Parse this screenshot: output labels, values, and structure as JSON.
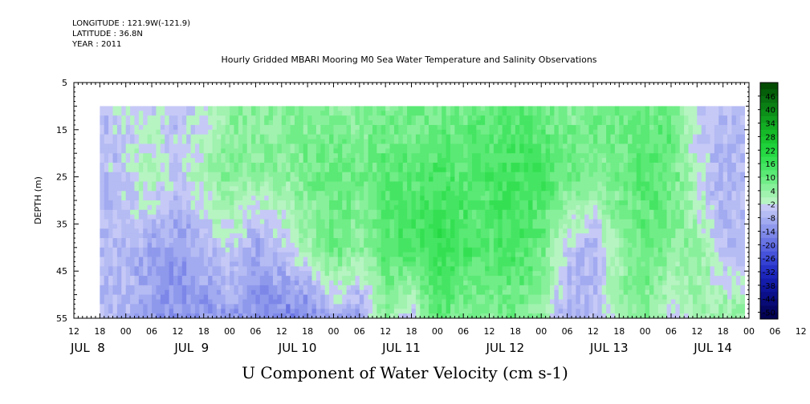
{
  "header": {
    "longitude": "LONGITUDE : 121.9W(-121.9)",
    "latitude": "LATITUDE : 36.8N",
    "year": "YEAR : 2011"
  },
  "chart_data": {
    "type": "heatmap",
    "title": "Hourly Gridded MBARI Mooring M0 Sea Water Temperature and Salinity Observations",
    "xlabel": "U Component of Water Velocity (cm s-1)",
    "ylabel": "DEPTH (m)",
    "y_ticks": [
      5,
      15,
      25,
      35,
      45,
      55
    ],
    "ylim": [
      5,
      55
    ],
    "y_reversed": true,
    "hour_ticks": [
      "12",
      "18",
      "00",
      "06",
      "12",
      "18",
      "00",
      "06",
      "12",
      "18",
      "00",
      "06",
      "12",
      "18",
      "00",
      "06",
      "12",
      "18",
      "00",
      "06",
      "12",
      "18",
      "00",
      "06",
      "12",
      "18",
      "00",
      "06",
      "12",
      "18",
      "00"
    ],
    "day_labels": [
      "JUL  8",
      "JUL  9",
      "JUL 10",
      "JUL 11",
      "JUL 12",
      "JUL 13",
      "JUL 14"
    ],
    "x_range_hours": [
      "JUL 8 12:00",
      "JUL 15 00:00"
    ],
    "data_start": "JUL 8 18:00",
    "data_end": "JUL 14 23:00",
    "data_depth_range": [
      10,
      55
    ],
    "colorbar_labels": [
      "46",
      "40",
      "34",
      "28",
      "22",
      "16",
      "10",
      "4",
      "-2",
      "-8",
      "-14",
      "-20",
      "-26",
      "-32",
      "-38",
      "-44",
      "-50"
    ],
    "color_levels": [
      {
        "upper": 52,
        "color": "#034b03"
      },
      {
        "upper": 49,
        "color": "#055e09"
      },
      {
        "upper": 46,
        "color": "#087010"
      },
      {
        "upper": 43,
        "color": "#0a8014"
      },
      {
        "upper": 40,
        "color": "#0c9019"
      },
      {
        "upper": 37,
        "color": "#0f9e1e"
      },
      {
        "upper": 34,
        "color": "#12ad23"
      },
      {
        "upper": 31,
        "color": "#16ba29"
      },
      {
        "upper": 28,
        "color": "#1ac630"
      },
      {
        "upper": 25,
        "color": "#1fd13a"
      },
      {
        "upper": 22,
        "color": "#26d944"
      },
      {
        "upper": 19,
        "color": "#34e052"
      },
      {
        "upper": 16,
        "color": "#45e563"
      },
      {
        "upper": 13,
        "color": "#5ae974"
      },
      {
        "upper": 10,
        "color": "#70ed87"
      },
      {
        "upper": 7,
        "color": "#88f09b"
      },
      {
        "upper": 4,
        "color": "#a0f2ae"
      },
      {
        "upper": 1,
        "color": "#b6f4c2"
      },
      {
        "upper": -2,
        "color": "#c6c9f6"
      },
      {
        "upper": -5,
        "color": "#b5bbf3"
      },
      {
        "upper": -8,
        "color": "#a2aaf0"
      },
      {
        "upper": -11,
        "color": "#8f99ec"
      },
      {
        "upper": -14,
        "color": "#7c87e8"
      },
      {
        "upper": -17,
        "color": "#6a75e4"
      },
      {
        "upper": -20,
        "color": "#5763df"
      },
      {
        "upper": -23,
        "color": "#4552d9"
      },
      {
        "upper": -26,
        "color": "#3441d2"
      },
      {
        "upper": -29,
        "color": "#2632c8"
      },
      {
        "upper": -32,
        "color": "#1c26bb"
      },
      {
        "upper": -35,
        "color": "#141dab"
      },
      {
        "upper": -38,
        "color": "#0f159a"
      },
      {
        "upper": -41,
        "color": "#0b0f88"
      },
      {
        "upper": -44,
        "color": "#080a76"
      },
      {
        "upper": -47,
        "color": "#050664"
      },
      {
        "upper": -50,
        "color": "#030352"
      }
    ],
    "column_profiles": [
      {
        "time": "JUL 8 18:00",
        "values": [
          -6,
          -6,
          -6,
          -5
        ]
      },
      {
        "time": "JUL 9 00:00",
        "values": [
          -4,
          -4,
          -6,
          -8
        ]
      },
      {
        "time": "JUL 9 06:00",
        "values": [
          -3,
          2,
          -10,
          -12
        ]
      },
      {
        "time": "JUL 9 12:00",
        "values": [
          -6,
          -4,
          -12,
          -14
        ]
      },
      {
        "time": "JUL 9 18:00",
        "values": [
          -4,
          2,
          -8,
          -12
        ]
      },
      {
        "time": "JUL 10 00:00",
        "values": [
          4,
          6,
          -2,
          -12
        ]
      },
      {
        "time": "JUL 10 06:00",
        "values": [
          5,
          4,
          -10,
          -14
        ]
      },
      {
        "time": "JUL 10 12:00",
        "values": [
          5,
          4,
          -4,
          -16
        ]
      },
      {
        "time": "JUL 10 18:00",
        "values": [
          6,
          8,
          2,
          -16
        ]
      },
      {
        "time": "JUL 11 00:00",
        "values": [
          6,
          10,
          10,
          -8
        ]
      },
      {
        "time": "JUL 11 06:00",
        "values": [
          5,
          8,
          4,
          -12
        ]
      },
      {
        "time": "JUL 11 12:00",
        "values": [
          7,
          12,
          12,
          6
        ]
      },
      {
        "time": "JUL 11 18:00",
        "values": [
          8,
          12,
          14,
          -6
        ]
      },
      {
        "time": "JUL 12 00:00",
        "values": [
          8,
          14,
          18,
          12
        ]
      },
      {
        "time": "JUL 12 06:00",
        "values": [
          8,
          12,
          14,
          6
        ]
      },
      {
        "time": "JUL 12 12:00",
        "values": [
          10,
          14,
          12,
          6
        ]
      },
      {
        "time": "JUL 12 18:00",
        "values": [
          12,
          16,
          14,
          8
        ]
      },
      {
        "time": "JUL 13 00:00",
        "values": [
          10,
          14,
          10,
          4
        ]
      },
      {
        "time": "JUL 13 06:00",
        "values": [
          6,
          8,
          -4,
          -10
        ]
      },
      {
        "time": "JUL 13 12:00",
        "values": [
          10,
          6,
          -8,
          -6
        ]
      },
      {
        "time": "JUL 13 18:00",
        "values": [
          8,
          8,
          4,
          2
        ]
      },
      {
        "time": "JUL 14 00:00",
        "values": [
          10,
          12,
          10,
          6
        ]
      },
      {
        "time": "JUL 14 06:00",
        "values": [
          10,
          10,
          6,
          -4
        ]
      },
      {
        "time": "JUL 14 12:00",
        "values": [
          -4,
          -2,
          4,
          2
        ]
      },
      {
        "time": "JUL 14 18:00",
        "values": [
          -6,
          -8,
          -6,
          4
        ]
      }
    ],
    "profile_depths": [
      10,
      25,
      40,
      55
    ],
    "grid": false,
    "legend": "right colorbar"
  }
}
